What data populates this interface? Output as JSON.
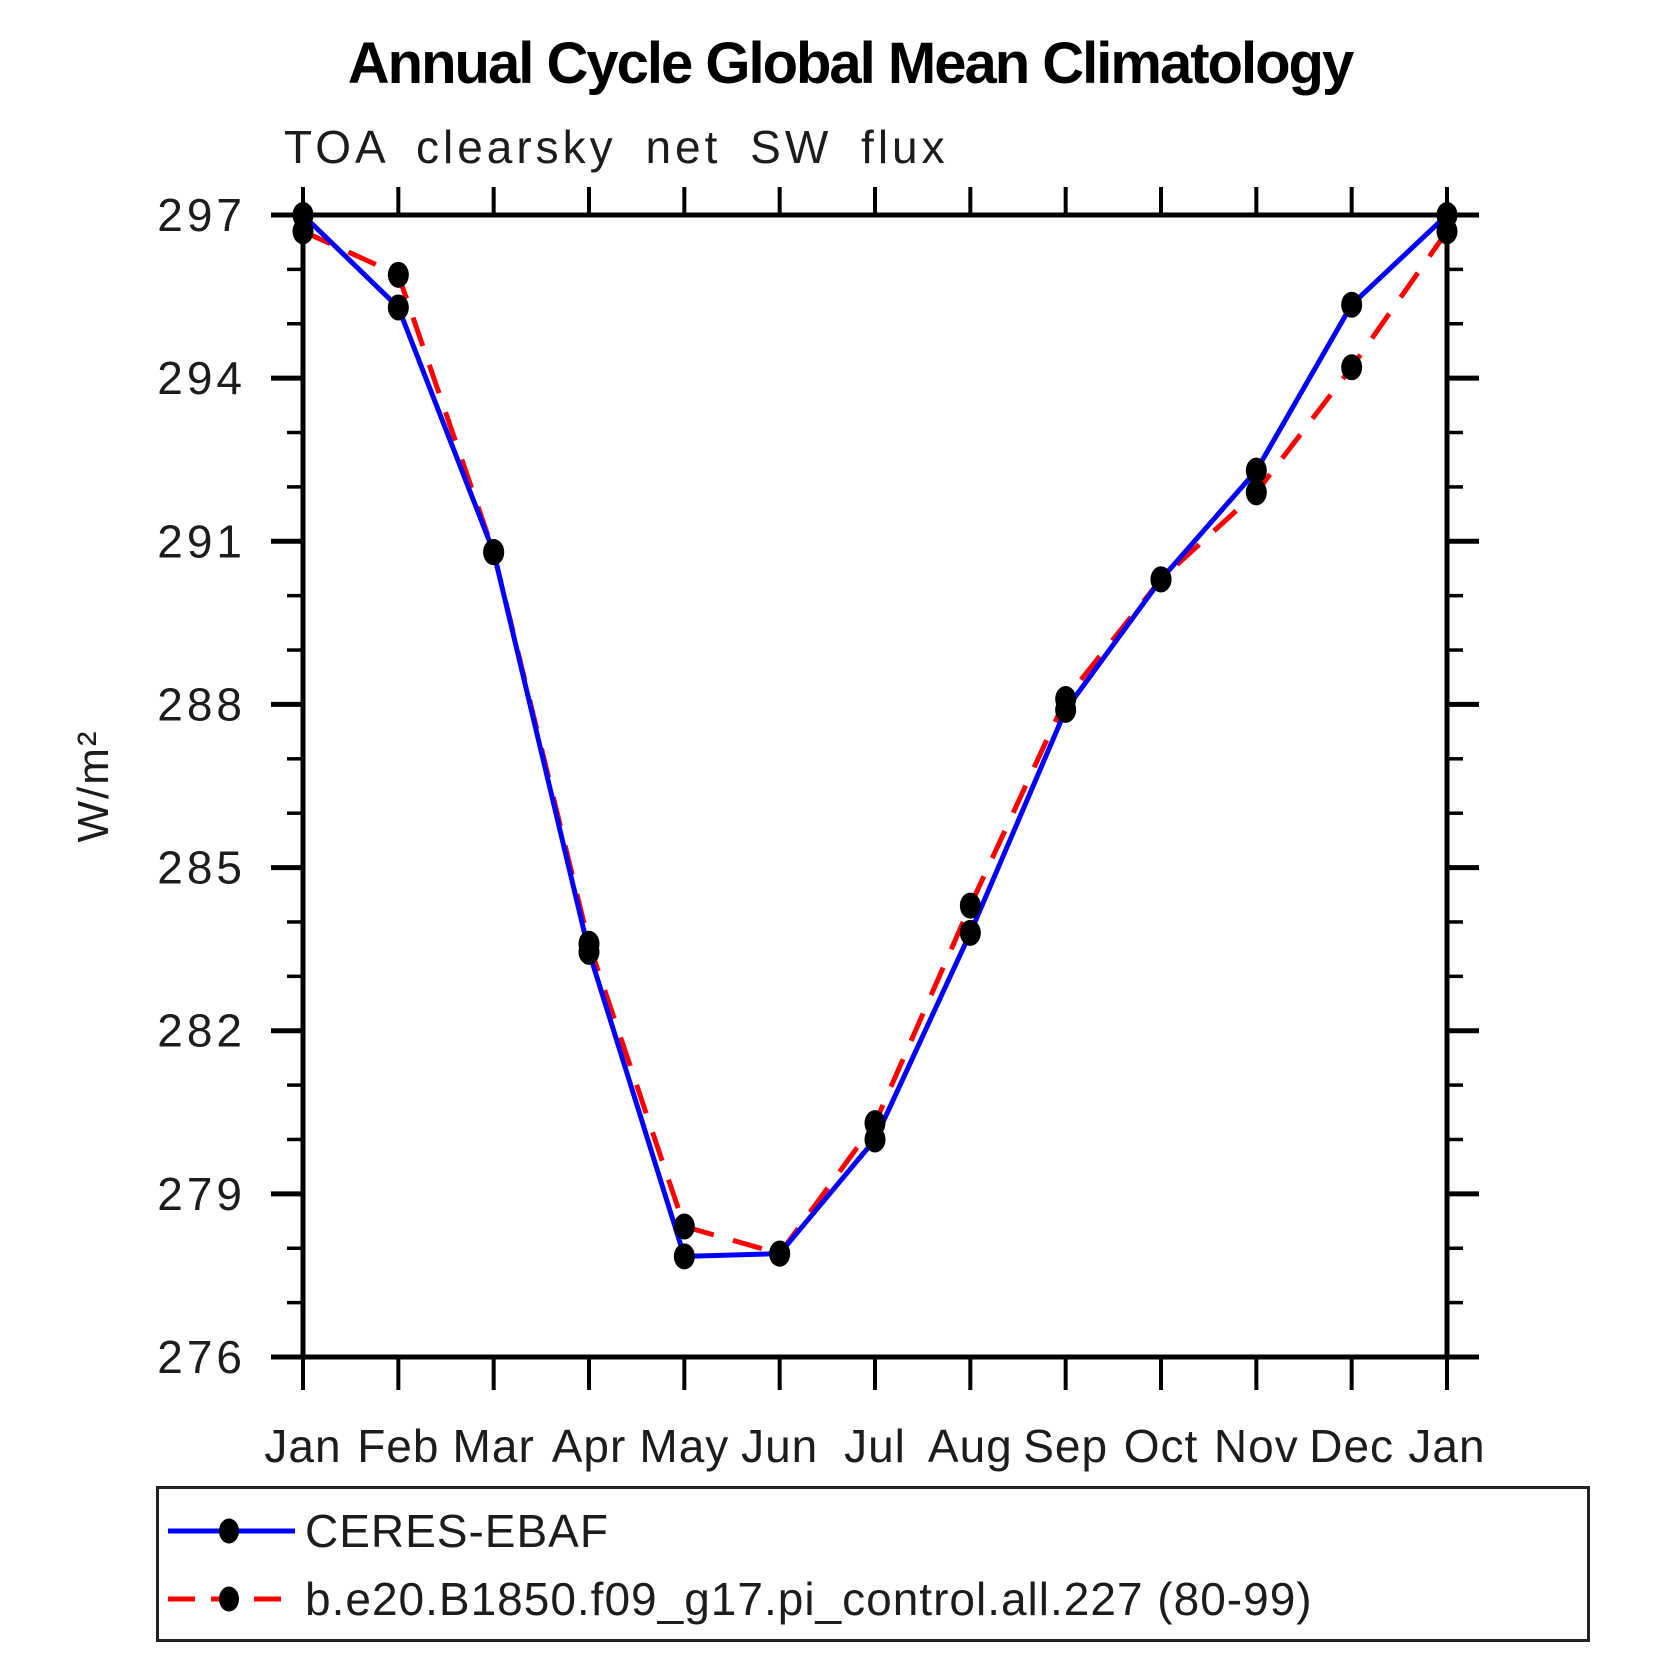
{
  "chart_data": {
    "type": "line",
    "title": "Annual Cycle Global Mean Climatology",
    "subtitle": "TOA clearsky net SW flux",
    "ylabel": "W/m²",
    "categories": [
      "Jan",
      "Feb",
      "Mar",
      "Apr",
      "May",
      "Jun",
      "Jul",
      "Aug",
      "Sep",
      "Oct",
      "Nov",
      "Dec",
      "Jan"
    ],
    "ylim": [
      276,
      297
    ],
    "ytick_major": [
      276,
      279,
      282,
      285,
      288,
      291,
      294,
      297
    ],
    "ytick_minor_step": 1,
    "grid": false,
    "legend_position": "bottom",
    "marker_color": "#000000",
    "series": [
      {
        "name": "CERES-EBAF",
        "color": "#0000ff",
        "style": "solid",
        "values": [
          297.0,
          295.3,
          290.8,
          283.45,
          277.85,
          277.9,
          280.0,
          283.8,
          287.9,
          290.3,
          292.3,
          295.35,
          297.0
        ]
      },
      {
        "name": "b.e20.B1850.f09_g17.pi_control.all.227 (80-99)",
        "color": "#ff0000",
        "style": "dashed",
        "values": [
          296.7,
          295.9,
          290.8,
          283.6,
          278.4,
          277.9,
          280.3,
          284.3,
          288.1,
          290.3,
          291.9,
          294.2,
          296.7
        ]
      }
    ]
  }
}
